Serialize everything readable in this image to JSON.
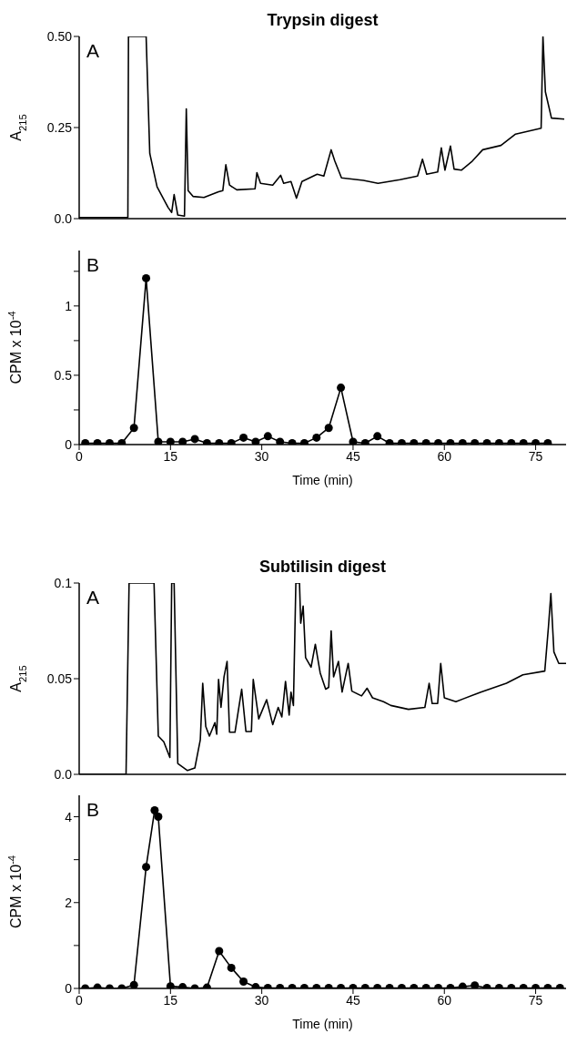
{
  "chart_data": [
    {
      "type": "line",
      "title": "Trypsin digest",
      "ylabel": "A$_{215}$",
      "annotations": [
        "A"
      ],
      "color": "#000000",
      "marker": "none",
      "tick_labels": "y",
      "xlim": [
        0,
        80
      ],
      "ylim": [
        0,
        0.5
      ],
      "yticks": [
        {
          "value": 0,
          "label": "0.0"
        },
        0.25,
        {
          "value": 0.5,
          "label": "0.50"
        }
      ],
      "x": [
        0,
        8.0,
        8.1,
        11.0,
        11.6,
        12.8,
        14.6,
        15.2,
        15.6,
        16.2,
        17.3,
        17.6,
        17.9,
        18.7,
        20.5,
        22.9,
        23.6,
        24.1,
        24.7,
        25.9,
        28.9,
        29.2,
        29.8,
        31.8,
        33.1,
        33.6,
        34.8,
        35.7,
        36.6,
        39.1,
        40.2,
        41.4,
        42.0,
        43.1,
        46.7,
        49.1,
        52.7,
        55.6,
        56.4,
        57.1,
        58.9,
        59.5,
        60.1,
        61.0,
        61.6,
        62.8,
        64.6,
        66.3,
        69.3,
        71.7,
        75.9,
        76.2,
        76.6,
        77.6,
        79.7
      ],
      "values": [
        0.003,
        0.003,
        0.5,
        0.5,
        0.179,
        0.087,
        0.031,
        0.017,
        0.066,
        0.01,
        0.007,
        0.301,
        0.077,
        0.061,
        0.058,
        0.074,
        0.077,
        0.148,
        0.092,
        0.079,
        0.082,
        0.126,
        0.097,
        0.092,
        0.119,
        0.097,
        0.102,
        0.056,
        0.102,
        0.122,
        0.117,
        0.189,
        0.158,
        0.112,
        0.105,
        0.097,
        0.107,
        0.117,
        0.163,
        0.122,
        0.128,
        0.194,
        0.133,
        0.199,
        0.136,
        0.133,
        0.158,
        0.189,
        0.201,
        0.232,
        0.248,
        0.5,
        0.348,
        0.276,
        0.273
      ]
    },
    {
      "type": "line",
      "xlabel": "Time (min)",
      "ylabel": "CPM x 10$^{-4}$",
      "annotations": [
        "B"
      ],
      "color": "#000000",
      "marker": "circle",
      "xlim": [
        0,
        80
      ],
      "xticks": [
        0,
        15,
        30,
        45,
        60,
        75
      ],
      "ylim": [
        0,
        1.4
      ],
      "yticks": [
        0,
        {
          "value": 0.25,
          "label": null
        },
        0.5,
        {
          "value": 0.75,
          "label": null
        },
        1,
        {
          "value": 1.25,
          "label": null
        }
      ],
      "x": [
        1,
        3,
        5,
        7,
        9,
        11,
        13,
        15,
        17,
        19,
        21,
        23,
        25,
        27,
        29,
        31,
        33,
        35,
        37,
        39,
        41,
        43,
        45,
        47,
        49,
        51,
        53,
        55,
        57,
        59,
        61,
        63,
        65,
        67,
        69,
        71,
        73,
        75,
        77
      ],
      "values": [
        0.01,
        0.01,
        0.01,
        0.01,
        0.12,
        1.2,
        0.02,
        0.02,
        0.02,
        0.04,
        0.01,
        0.01,
        0.01,
        0.05,
        0.02,
        0.06,
        0.02,
        0.01,
        0.01,
        0.05,
        0.12,
        0.41,
        0.02,
        0.01,
        0.06,
        0.01,
        0.01,
        0.01,
        0.01,
        0.01,
        0.01,
        0.01,
        0.01,
        0.01,
        0.01,
        0.01,
        0.01,
        0.01,
        0.01
      ]
    },
    {
      "type": "line",
      "title": "Subtilisin digest",
      "ylabel": "A$_{215}$",
      "annotations": [
        "A"
      ],
      "color": "#000000",
      "marker": "none",
      "tick_labels": "y",
      "xlim": [
        0,
        80
      ],
      "ylim": [
        0,
        0.1
      ],
      "yticks": [
        {
          "value": 0,
          "label": "0.0"
        },
        0.05,
        0.1
      ],
      "x": [
        0,
        7.7,
        8.2,
        12.3,
        13.0,
        13.9,
        14.9,
        15.2,
        15.6,
        16.2,
        17.8,
        19.0,
        19.9,
        20.3,
        20.8,
        21.4,
        22.3,
        22.6,
        22.9,
        23.3,
        23.8,
        24.3,
        24.7,
        25.6,
        26.7,
        27.4,
        28.3,
        28.6,
        29.5,
        30.8,
        31.8,
        32.7,
        33.3,
        33.9,
        34.5,
        34.8,
        35.2,
        35.6,
        36.2,
        36.4,
        36.8,
        37.2,
        38.1,
        38.8,
        39.6,
        40.5,
        41.0,
        41.4,
        41.8,
        42.6,
        43.2,
        44.2,
        44.8,
        46.4,
        47.3,
        48.2,
        50.0,
        51.2,
        54.1,
        56.8,
        57.5,
        58.0,
        58.9,
        59.4,
        60.0,
        61.9,
        66.0,
        70.2,
        72.9,
        76.5,
        77.1,
        77.5,
        78.0,
        78.8,
        80.0
      ],
      "values": [
        0.0,
        0.0,
        0.1,
        0.1,
        0.02,
        0.017,
        0.0088,
        0.1,
        0.1,
        0.0057,
        0.002,
        0.0033,
        0.018,
        0.0476,
        0.025,
        0.02,
        0.027,
        0.021,
        0.0496,
        0.035,
        0.051,
        0.059,
        0.022,
        0.022,
        0.0445,
        0.0224,
        0.0224,
        0.0496,
        0.029,
        0.039,
        0.026,
        0.035,
        0.03,
        0.0486,
        0.031,
        0.043,
        0.036,
        0.1,
        0.1,
        0.079,
        0.088,
        0.061,
        0.056,
        0.068,
        0.053,
        0.0445,
        0.0455,
        0.075,
        0.051,
        0.059,
        0.043,
        0.058,
        0.0435,
        0.041,
        0.045,
        0.04,
        0.038,
        0.036,
        0.034,
        0.035,
        0.0476,
        0.037,
        0.037,
        0.058,
        0.04,
        0.038,
        0.043,
        0.0476,
        0.052,
        0.054,
        0.077,
        0.0945,
        0.064,
        0.058,
        0.058
      ]
    },
    {
      "type": "line",
      "xlabel": "Time (min)",
      "ylabel": "CPM x 10$^{-4}$",
      "annotations": [
        "B"
      ],
      "color": "#000000",
      "marker": "circle",
      "xlim": [
        0,
        80
      ],
      "xticks": [
        0,
        15,
        30,
        45,
        60,
        75
      ],
      "ylim": [
        0,
        4.5
      ],
      "yticks": [
        0,
        {
          "value": 1,
          "label": null
        },
        2,
        {
          "value": 3,
          "label": null
        },
        4
      ],
      "x": [
        1,
        3,
        5,
        7,
        9,
        11,
        12.4,
        13,
        15,
        17,
        19,
        21,
        23,
        25,
        27,
        29,
        31,
        33,
        35,
        37,
        39,
        41,
        43,
        45,
        47,
        49,
        51,
        53,
        55,
        57,
        59,
        61,
        63,
        65,
        67,
        69,
        71,
        73,
        75,
        77,
        79
      ],
      "values": [
        0,
        0.02,
        0,
        0,
        0.08,
        2.83,
        4.15,
        4.0,
        0.05,
        0.03,
        0,
        0.02,
        0.87,
        0.48,
        0.16,
        0.03,
        0.01,
        0.01,
        0.01,
        0.01,
        0.01,
        0.01,
        0.01,
        0.01,
        0.01,
        0.01,
        0.01,
        0.01,
        0.01,
        0.01,
        0.01,
        0.01,
        0.04,
        0.07,
        0.01,
        0.01,
        0.01,
        0.01,
        0.01,
        0.01,
        0.01
      ]
    }
  ]
}
